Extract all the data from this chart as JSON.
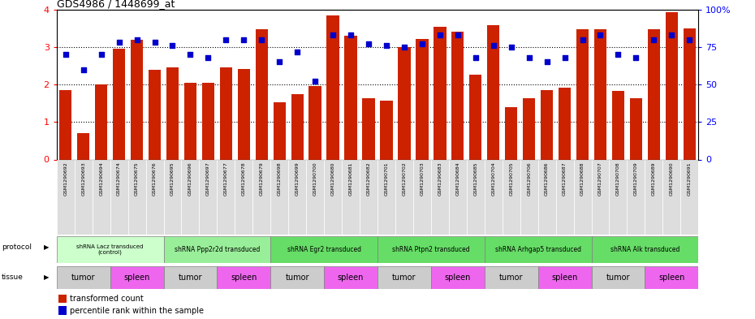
{
  "title": "GDS4986 / 1448699_at",
  "samples": [
    "GSM1290692",
    "GSM1290693",
    "GSM1290694",
    "GSM1290674",
    "GSM1290675",
    "GSM1290676",
    "GSM1290695",
    "GSM1290696",
    "GSM1290697",
    "GSM1290677",
    "GSM1290678",
    "GSM1290679",
    "GSM1290698",
    "GSM1290699",
    "GSM1290700",
    "GSM1290680",
    "GSM1290681",
    "GSM1290682",
    "GSM1290701",
    "GSM1290702",
    "GSM1290703",
    "GSM1290683",
    "GSM1290684",
    "GSM1290685",
    "GSM1290704",
    "GSM1290705",
    "GSM1290706",
    "GSM1290686",
    "GSM1290687",
    "GSM1290688",
    "GSM1290707",
    "GSM1290708",
    "GSM1290709",
    "GSM1290689",
    "GSM1290690",
    "GSM1290691"
  ],
  "bar_values": [
    1.85,
    0.7,
    2.0,
    2.95,
    3.2,
    2.4,
    2.45,
    2.05,
    2.05,
    2.45,
    2.42,
    3.47,
    1.53,
    1.75,
    1.97,
    3.85,
    3.3,
    1.63,
    1.57,
    3.0,
    3.22,
    3.55,
    3.4,
    2.26,
    3.58,
    1.4,
    1.63,
    1.85,
    1.91,
    3.48,
    3.48,
    1.82,
    1.63,
    3.47,
    3.92,
    3.5
  ],
  "percentile_values": [
    70,
    60,
    70,
    78,
    80,
    78,
    76,
    70,
    68,
    80,
    80,
    80,
    65,
    72,
    52,
    83,
    83,
    77,
    76,
    75,
    77,
    83,
    83,
    68,
    76,
    75,
    68,
    65,
    68,
    80,
    83,
    70,
    68,
    80,
    83,
    80
  ],
  "ylim_left": [
    0,
    4
  ],
  "ylim_right": [
    0,
    100
  ],
  "yticks_left": [
    0,
    1,
    2,
    3,
    4
  ],
  "yticks_right": [
    0,
    25,
    50,
    75,
    100
  ],
  "bar_color": "#cc2200",
  "dot_color": "#0000cc",
  "protocols": [
    {
      "label": "shRNA Lacz transduced\n(control)",
      "start": 0,
      "end": 6,
      "color": "#ccffcc"
    },
    {
      "label": "shRNA Ppp2r2d transduced",
      "start": 6,
      "end": 12,
      "color": "#99ee99"
    },
    {
      "label": "shRNA Egr2 transduced",
      "start": 12,
      "end": 18,
      "color": "#66dd66"
    },
    {
      "label": "shRNA Ptpn2 transduced",
      "start": 18,
      "end": 24,
      "color": "#66dd66"
    },
    {
      "label": "shRNA Arhgap5 transduced",
      "start": 24,
      "end": 30,
      "color": "#66dd66"
    },
    {
      "label": "shRNA Alk transduced",
      "start": 30,
      "end": 36,
      "color": "#66dd66"
    }
  ],
  "tissues": [
    {
      "label": "tumor",
      "start": 0,
      "end": 3,
      "color": "#cccccc"
    },
    {
      "label": "spleen",
      "start": 3,
      "end": 6,
      "color": "#ee66ee"
    },
    {
      "label": "tumor",
      "start": 6,
      "end": 9,
      "color": "#cccccc"
    },
    {
      "label": "spleen",
      "start": 9,
      "end": 12,
      "color": "#ee66ee"
    },
    {
      "label": "tumor",
      "start": 12,
      "end": 15,
      "color": "#cccccc"
    },
    {
      "label": "spleen",
      "start": 15,
      "end": 18,
      "color": "#ee66ee"
    },
    {
      "label": "tumor",
      "start": 18,
      "end": 21,
      "color": "#cccccc"
    },
    {
      "label": "spleen",
      "start": 21,
      "end": 24,
      "color": "#ee66ee"
    },
    {
      "label": "tumor",
      "start": 24,
      "end": 27,
      "color": "#cccccc"
    },
    {
      "label": "spleen",
      "start": 27,
      "end": 30,
      "color": "#ee66ee"
    },
    {
      "label": "tumor",
      "start": 30,
      "end": 33,
      "color": "#cccccc"
    },
    {
      "label": "spleen",
      "start": 33,
      "end": 36,
      "color": "#ee66ee"
    }
  ],
  "legend_bar_label": "transformed count",
  "legend_dot_label": "percentile rank within the sample",
  "sample_bg_color": "#dddddd",
  "fig_width": 9.3,
  "fig_height": 3.93
}
